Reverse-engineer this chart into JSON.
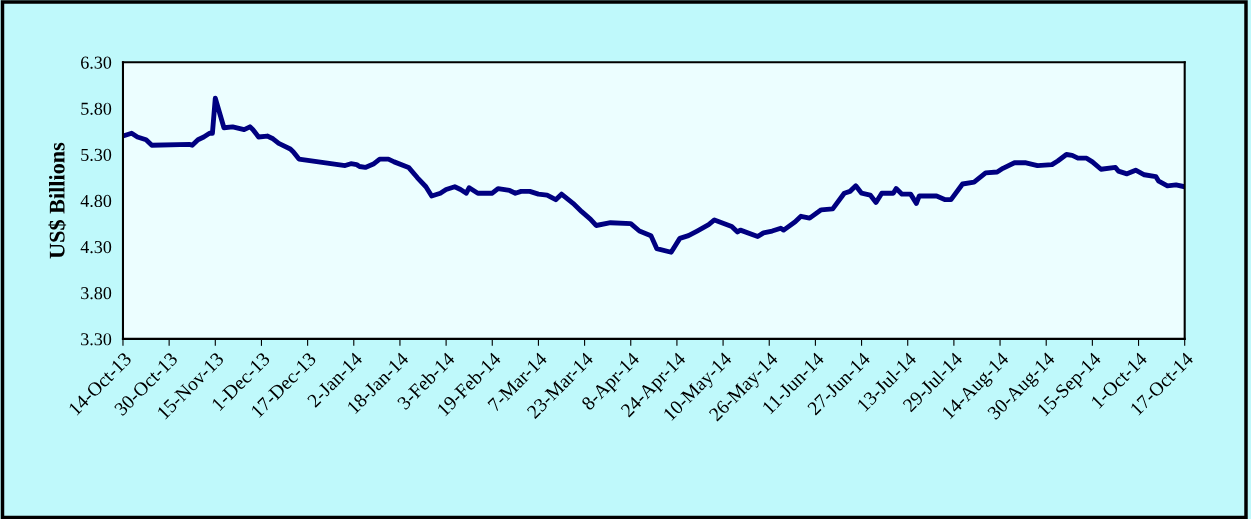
{
  "chart_data": {
    "type": "line",
    "ylabel": "US$ Billions",
    "x": [
      "2013-10-14",
      "2013-10-17",
      "2013-10-19",
      "2013-10-22",
      "2013-10-24",
      "2013-11-06",
      "2013-11-07",
      "2013-11-09",
      "2013-11-11",
      "2013-11-13",
      "2013-11-14",
      "2013-11-15",
      "2013-11-18",
      "2013-11-21",
      "2013-11-25",
      "2013-11-27",
      "2013-11-28",
      "2013-11-30",
      "2013-12-03",
      "2013-12-05",
      "2013-12-07",
      "2013-12-11",
      "2013-12-12",
      "2013-12-14",
      "2013-12-30",
      "2014-01-01",
      "2014-01-03",
      "2014-01-04",
      "2014-01-06",
      "2014-01-09",
      "2014-01-11",
      "2014-01-14",
      "2014-01-16",
      "2014-01-21",
      "2014-01-24",
      "2014-01-27",
      "2014-01-29",
      "2014-02-01",
      "2014-02-03",
      "2014-02-06",
      "2014-02-08",
      "2014-02-10",
      "2014-02-11",
      "2014-02-14",
      "2014-02-19",
      "2014-02-21",
      "2014-02-25",
      "2014-02-27",
      "2014-03-01",
      "2014-03-04",
      "2014-03-07",
      "2014-03-10",
      "2014-03-13",
      "2014-03-15",
      "2014-03-19",
      "2014-03-22",
      "2014-03-25",
      "2014-03-27",
      "2014-04-01",
      "2014-04-08",
      "2014-04-11",
      "2014-04-15",
      "2014-04-17",
      "2014-04-22",
      "2014-04-25",
      "2014-04-28",
      "2014-05-01",
      "2014-05-05",
      "2014-05-07",
      "2014-05-13",
      "2014-05-15",
      "2014-05-16",
      "2014-05-22",
      "2014-05-24",
      "2014-05-27",
      "2014-05-30",
      "2014-05-31",
      "2014-06-04",
      "2014-06-06",
      "2014-06-09",
      "2014-06-13",
      "2014-06-17",
      "2014-06-21",
      "2014-06-23",
      "2014-06-25",
      "2014-06-27",
      "2014-06-30",
      "2014-07-02",
      "2014-07-04",
      "2014-07-08",
      "2014-07-09",
      "2014-07-11",
      "2014-07-14",
      "2014-07-16",
      "2014-07-17",
      "2014-07-23",
      "2014-07-26",
      "2014-07-28",
      "2014-08-01",
      "2014-08-05",
      "2014-08-09",
      "2014-08-13",
      "2014-08-15",
      "2014-08-19",
      "2014-08-23",
      "2014-08-27",
      "2014-09-01",
      "2014-09-03",
      "2014-09-06",
      "2014-09-08",
      "2014-09-10",
      "2014-09-13",
      "2014-09-15",
      "2014-09-18",
      "2014-09-23",
      "2014-09-24",
      "2014-09-27",
      "2014-09-30",
      "2014-10-03",
      "2014-10-07",
      "2014-10-08",
      "2014-10-11",
      "2014-10-14",
      "2014-10-17"
    ],
    "series": [
      {
        "color": "#000080",
        "values": [
          5.5,
          5.53,
          5.49,
          5.46,
          5.4,
          5.41,
          5.4,
          5.46,
          5.49,
          5.53,
          5.53,
          5.91,
          5.59,
          5.6,
          5.57,
          5.6,
          5.57,
          5.49,
          5.5,
          5.47,
          5.42,
          5.36,
          5.33,
          5.25,
          5.18,
          5.2,
          5.19,
          5.17,
          5.16,
          5.2,
          5.25,
          5.25,
          5.22,
          5.16,
          5.05,
          4.95,
          4.85,
          4.88,
          4.92,
          4.95,
          4.92,
          4.88,
          4.94,
          4.88,
          4.88,
          4.93,
          4.91,
          4.88,
          4.9,
          4.9,
          4.87,
          4.86,
          4.81,
          4.87,
          4.77,
          4.68,
          4.6,
          4.53,
          4.56,
          4.55,
          4.47,
          4.42,
          4.28,
          4.24,
          4.39,
          4.42,
          4.47,
          4.54,
          4.59,
          4.52,
          4.46,
          4.48,
          4.41,
          4.45,
          4.47,
          4.5,
          4.48,
          4.57,
          4.63,
          4.61,
          4.7,
          4.71,
          4.88,
          4.9,
          4.96,
          4.88,
          4.86,
          4.78,
          4.88,
          4.88,
          4.93,
          4.87,
          4.87,
          4.77,
          4.85,
          4.85,
          4.81,
          4.81,
          4.98,
          5.0,
          5.1,
          5.11,
          5.15,
          5.21,
          5.21,
          5.18,
          5.19,
          5.23,
          5.3,
          5.29,
          5.26,
          5.26,
          5.22,
          5.14,
          5.16,
          5.12,
          5.09,
          5.13,
          5.08,
          5.06,
          5.01,
          4.96,
          4.97,
          4.95
        ]
      }
    ],
    "xlim": [
      "2013-10-14",
      "2014-10-17"
    ],
    "xticks": [
      {
        "value": "2013-10-14",
        "label": "14-Oct-13"
      },
      {
        "value": "2013-10-30",
        "label": "30-Oct-13"
      },
      {
        "value": "2013-11-15",
        "label": "15-Nov-13"
      },
      {
        "value": "2013-12-01",
        "label": "1-Dec-13"
      },
      {
        "value": "2013-12-17",
        "label": "17-Dec-13"
      },
      {
        "value": "2014-01-02",
        "label": "2-Jan-14"
      },
      {
        "value": "2014-01-18",
        "label": "18-Jan-14"
      },
      {
        "value": "2014-02-03",
        "label": "3-Feb-14"
      },
      {
        "value": "2014-02-19",
        "label": "19-Feb-14"
      },
      {
        "value": "2014-03-07",
        "label": "7-Mar-14"
      },
      {
        "value": "2014-03-23",
        "label": "23-Mar-14"
      },
      {
        "value": "2014-04-08",
        "label": "8-Apr-14"
      },
      {
        "value": "2014-04-24",
        "label": "24-Apr-14"
      },
      {
        "value": "2014-05-10",
        "label": "10-May-14"
      },
      {
        "value": "2014-05-26",
        "label": "26-May-14"
      },
      {
        "value": "2014-06-11",
        "label": "11-Jun-14"
      },
      {
        "value": "2014-06-27",
        "label": "27-Jun-14"
      },
      {
        "value": "2014-07-13",
        "label": "13-Jul-14"
      },
      {
        "value": "2014-07-29",
        "label": "29-Jul-14"
      },
      {
        "value": "2014-08-14",
        "label": "14-Aug-14"
      },
      {
        "value": "2014-08-30",
        "label": "30-Aug-14"
      },
      {
        "value": "2014-09-15",
        "label": "15-Sep-14"
      },
      {
        "value": "2014-10-01",
        "label": "1-Oct-14"
      },
      {
        "value": "2014-10-17",
        "label": "17-Oct-14"
      }
    ],
    "ylim": [
      3.3,
      6.3
    ],
    "yticks": [
      {
        "value": 3.3,
        "label": "3.30"
      },
      {
        "value": 3.8,
        "label": "3.80"
      },
      {
        "value": 4.3,
        "label": "4.30"
      },
      {
        "value": 4.8,
        "label": "4.80"
      },
      {
        "value": 5.3,
        "label": "5.30"
      },
      {
        "value": 5.8,
        "label": "5.80"
      },
      {
        "value": 6.3,
        "label": "6.30"
      }
    ],
    "marker": "none",
    "line_style": "solid"
  }
}
